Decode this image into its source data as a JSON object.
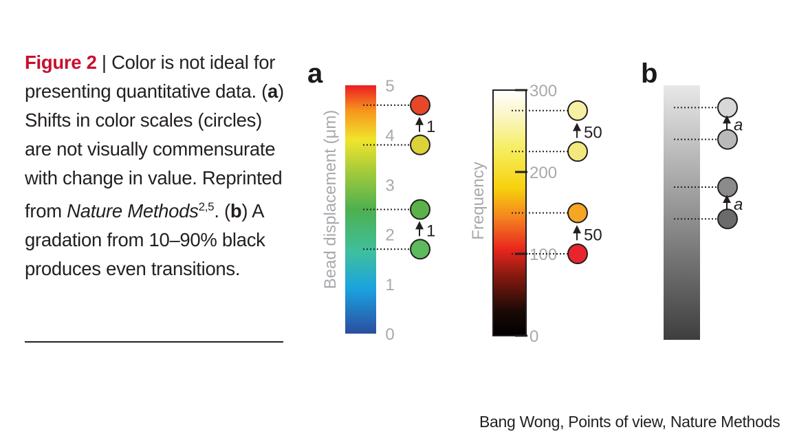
{
  "caption": {
    "figure_label": "Figure 2",
    "separator": " | ",
    "part1": "Color is not ideal for presenting quantitative data. (",
    "a_label": "a",
    "part2": ") Shifts in color scales (circles) are not visually commensurate with change in value. Reprinted from ",
    "journal": "Nature Methods",
    "refs": "2,5",
    "part3": ". (",
    "b_label": "b",
    "part4": ") A gradation from 10–90% black produces even transitions."
  },
  "credit": "Bang Wong,  Points of view, Nature Methods",
  "chart_data": [
    {
      "panel": "a",
      "type": "scatter",
      "scale": "rainbow",
      "ylabel": "Bead displacement (μm)",
      "ylim": [
        0,
        5
      ],
      "ticks": [
        "0",
        "1",
        "2",
        "3",
        "4",
        "5"
      ],
      "points": [
        4.6,
        3.8,
        2.5,
        1.7
      ],
      "point_colors": [
        "#e8472a",
        "#dcd23a",
        "#5cb24a",
        "#5dba5d"
      ],
      "deltas": [
        {
          "from": 3.8,
          "to": 4.6,
          "label": "1"
        },
        {
          "from": 1.7,
          "to": 2.5,
          "label": "1"
        }
      ]
    },
    {
      "panel": "a",
      "type": "scatter",
      "scale": "heat",
      "ylabel": "Frequency",
      "ylim": [
        0,
        300
      ],
      "ticks": [
        "0",
        "100",
        "200",
        "300"
      ],
      "points": [
        275,
        225,
        150,
        100
      ],
      "point_colors": [
        "#f7f0a4",
        "#f2e97e",
        "#f5a623",
        "#e8252e"
      ],
      "deltas": [
        {
          "from": 225,
          "to": 275,
          "label": "50"
        },
        {
          "from": 100,
          "to": 150,
          "label": "50"
        }
      ]
    },
    {
      "panel": "b",
      "type": "scatter",
      "scale": "grayscale",
      "ylabel": "",
      "ylim": [
        10,
        90
      ],
      "ticks": [],
      "points": [
        83,
        73,
        58,
        48
      ],
      "point_colors": [
        "#d8d8d8",
        "#b9b9b9",
        "#8b8b8b",
        "#6b6b6b"
      ],
      "deltas": [
        {
          "from": 73,
          "to": 83,
          "label": "a"
        },
        {
          "from": 48,
          "to": 58,
          "label": "a"
        }
      ]
    }
  ],
  "panel_letters": {
    "a": "a",
    "b": "b"
  }
}
